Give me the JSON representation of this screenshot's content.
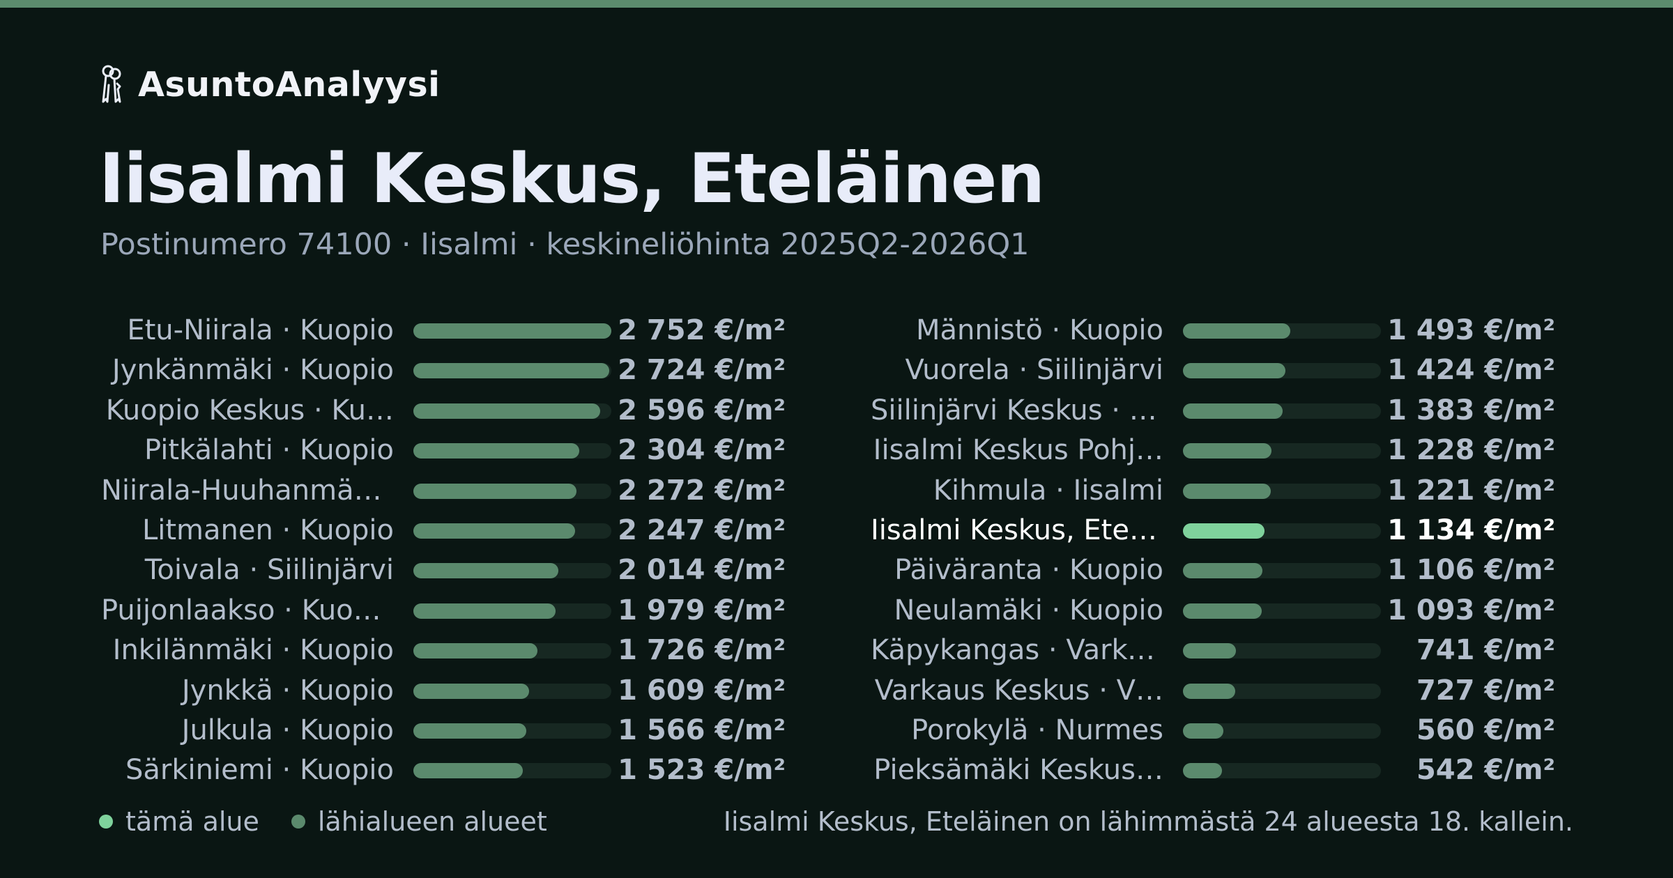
{
  "brand": {
    "name": "AsuntoAnalyysi",
    "icon": "keys-icon"
  },
  "header": {
    "title": "Iisalmi Keskus, Eteläinen",
    "subtitle": "Postinumero 74100 · Iisalmi · keskineliöhinta 2025Q2-2026Q1"
  },
  "colors": {
    "background": "#0a1613",
    "accent_top": "#5c8c6e",
    "bar_neighbor": "#5b8a6d",
    "bar_current": "#7fd29c",
    "track": "#172822",
    "text_primary": "#eaeef7",
    "text_secondary": "#b3bdcb"
  },
  "chart_data": {
    "type": "bar",
    "orientation": "horizontal",
    "unit": "€/m²",
    "xlim": [
      0,
      2752
    ],
    "highlight_index": 17,
    "rows": [
      {
        "label": "Etu-Niirala · Kuopio",
        "value": 2752,
        "value_label": "2 752 €/m²"
      },
      {
        "label": "Jynkänmäki · Kuopio",
        "value": 2724,
        "value_label": "2 724 €/m²"
      },
      {
        "label": "Kuopio Keskus · Ku…",
        "value": 2596,
        "value_label": "2 596 €/m²"
      },
      {
        "label": "Pitkälahti · Kuopio",
        "value": 2304,
        "value_label": "2 304 €/m²"
      },
      {
        "label": "Niirala-Huuhanmäki…",
        "value": 2272,
        "value_label": "2 272 €/m²"
      },
      {
        "label": "Litmanen · Kuopio",
        "value": 2247,
        "value_label": "2 247 €/m²"
      },
      {
        "label": "Toivala · Siilinjärvi",
        "value": 2014,
        "value_label": "2 014 €/m²"
      },
      {
        "label": "Puijonlaakso · Kuopio",
        "value": 1979,
        "value_label": "1 979 €/m²"
      },
      {
        "label": "Inkilänmäki · Kuopio",
        "value": 1726,
        "value_label": "1 726 €/m²"
      },
      {
        "label": "Jynkkä · Kuopio",
        "value": 1609,
        "value_label": "1 609 €/m²"
      },
      {
        "label": "Julkula · Kuopio",
        "value": 1566,
        "value_label": "1 566 €/m²"
      },
      {
        "label": "Särkiniemi · Kuopio",
        "value": 1523,
        "value_label": "1 523 €/m²"
      },
      {
        "label": "Männistö · Kuopio",
        "value": 1493,
        "value_label": "1 493 €/m²"
      },
      {
        "label": "Vuorela · Siilinjärvi",
        "value": 1424,
        "value_label": "1 424 €/m²"
      },
      {
        "label": "Siilinjärvi Keskus · S…",
        "value": 1383,
        "value_label": "1 383 €/m²"
      },
      {
        "label": "Iisalmi Keskus Pohj…",
        "value": 1228,
        "value_label": "1 228 €/m²"
      },
      {
        "label": "Kihmula · Iisalmi",
        "value": 1221,
        "value_label": "1 221 €/m²"
      },
      {
        "label": "Iisalmi Keskus, Etel…",
        "value": 1134,
        "value_label": "1 134 €/m²"
      },
      {
        "label": "Päiväranta · Kuopio",
        "value": 1106,
        "value_label": "1 106 €/m²"
      },
      {
        "label": "Neulamäki · Kuopio",
        "value": 1093,
        "value_label": "1 093 €/m²"
      },
      {
        "label": "Käpykangas · Varka…",
        "value": 741,
        "value_label": "741 €/m²"
      },
      {
        "label": "Varkaus Keskus · V…",
        "value": 727,
        "value_label": "727 €/m²"
      },
      {
        "label": "Porokylä · Nurmes",
        "value": 560,
        "value_label": "560 €/m²"
      },
      {
        "label": "Pieksämäki Keskus…",
        "value": 542,
        "value_label": "542 €/m²"
      }
    ]
  },
  "legend": {
    "current_label": "tämä alue",
    "neighbors_label": "lähialueen alueet"
  },
  "footer_note": "Iisalmi Keskus, Eteläinen on lähimmästä 24 alueesta 18. kallein."
}
